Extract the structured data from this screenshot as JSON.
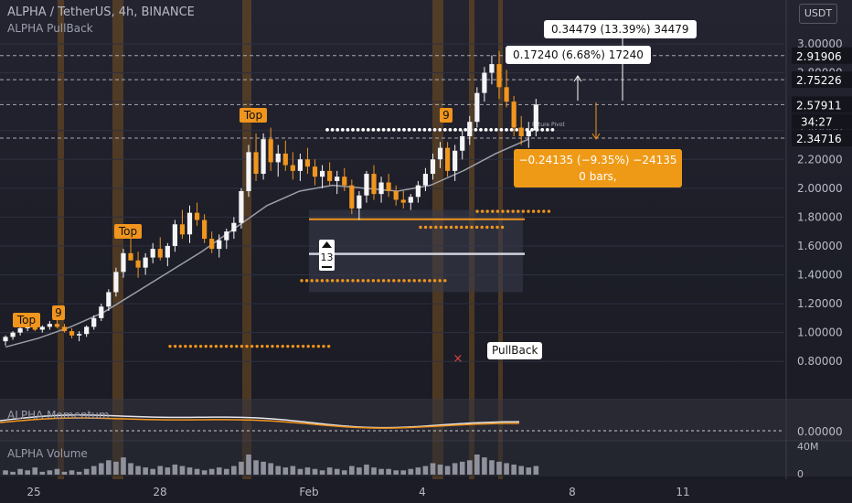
{
  "chart_data": {
    "type": "candlestick",
    "title": "ALPHA / TetherUS, 4h, BINANCE",
    "indicator": "ALPHA PullBack",
    "currency": "USDT",
    "colors": {
      "up": "#f5f5f7",
      "down": "#f0951d",
      "accent": "#f0951d",
      "ma": "#9c9ea8"
    },
    "ylim": [
      0.7,
      3.0
    ],
    "y_ticks": [
      0.8,
      1.0,
      1.2,
      1.4,
      1.6,
      1.8,
      2.0,
      2.2,
      2.4,
      2.6,
      2.8,
      3.0
    ],
    "y_tick_labels": [
      "0.80000",
      "1.00000",
      "1.20000",
      "1.40000",
      "1.60000",
      "1.80000",
      "2.00000",
      "2.20000",
      "2.40000",
      "2.60000",
      "2.80000",
      "3.00000"
    ],
    "x_tick_labels": [
      "25",
      "28",
      "Feb",
      "4",
      "8",
      "11"
    ],
    "price_labels": [
      {
        "value": 2.91906,
        "text": "2.91906"
      },
      {
        "value": 2.75226,
        "text": "2.75226"
      },
      {
        "value": 2.57911,
        "text": "2.57911",
        "current": true
      },
      {
        "value": 2.34716,
        "text": "2.34716"
      }
    ],
    "countdown": "34:27",
    "candles": [
      [
        0.94,
        0.98,
        0.91,
        0.97
      ],
      [
        0.97,
        1.01,
        0.95,
        1.0
      ],
      [
        1.0,
        1.04,
        0.98,
        1.03
      ],
      [
        1.03,
        1.07,
        1.01,
        1.05
      ],
      [
        1.05,
        1.08,
        1.01,
        1.02
      ],
      [
        1.02,
        1.05,
        1.0,
        1.04
      ],
      [
        1.04,
        1.08,
        1.02,
        1.06
      ],
      [
        1.06,
        1.09,
        1.03,
        1.04
      ],
      [
        1.04,
        1.06,
        1.0,
        1.01
      ],
      [
        1.01,
        1.03,
        0.96,
        0.98
      ],
      [
        0.98,
        1.01,
        0.94,
        0.99
      ],
      [
        0.99,
        1.05,
        0.97,
        1.04
      ],
      [
        1.04,
        1.12,
        1.02,
        1.1
      ],
      [
        1.1,
        1.2,
        1.08,
        1.18
      ],
      [
        1.18,
        1.3,
        1.15,
        1.28
      ],
      [
        1.28,
        1.45,
        1.25,
        1.42
      ],
      [
        1.42,
        1.58,
        1.38,
        1.55
      ],
      [
        1.55,
        1.7,
        1.5,
        1.5
      ],
      [
        1.5,
        1.56,
        1.38,
        1.45
      ],
      [
        1.45,
        1.55,
        1.4,
        1.52
      ],
      [
        1.52,
        1.62,
        1.48,
        1.58
      ],
      [
        1.58,
        1.66,
        1.5,
        1.52
      ],
      [
        1.52,
        1.62,
        1.46,
        1.6
      ],
      [
        1.6,
        1.78,
        1.56,
        1.75
      ],
      [
        1.75,
        1.85,
        1.65,
        1.68
      ],
      [
        1.68,
        1.88,
        1.62,
        1.83
      ],
      [
        1.83,
        1.9,
        1.74,
        1.78
      ],
      [
        1.78,
        1.82,
        1.62,
        1.65
      ],
      [
        1.65,
        1.7,
        1.55,
        1.58
      ],
      [
        1.58,
        1.68,
        1.52,
        1.64
      ],
      [
        1.64,
        1.72,
        1.58,
        1.7
      ],
      [
        1.7,
        1.8,
        1.65,
        1.76
      ],
      [
        1.76,
        2.0,
        1.72,
        1.98
      ],
      [
        1.98,
        2.3,
        1.94,
        2.25
      ],
      [
        2.25,
        2.38,
        2.05,
        2.1
      ],
      [
        2.1,
        2.38,
        2.06,
        2.34
      ],
      [
        2.34,
        2.42,
        2.12,
        2.18
      ],
      [
        2.18,
        2.3,
        2.08,
        2.24
      ],
      [
        2.24,
        2.33,
        2.12,
        2.16
      ],
      [
        2.16,
        2.25,
        2.06,
        2.12
      ],
      [
        2.12,
        2.24,
        2.05,
        2.2
      ],
      [
        2.2,
        2.28,
        2.1,
        2.15
      ],
      [
        2.15,
        2.2,
        2.02,
        2.08
      ],
      [
        2.08,
        2.16,
        2.0,
        2.12
      ],
      [
        2.12,
        2.18,
        2.02,
        2.05
      ],
      [
        2.05,
        2.12,
        1.96,
        2.08
      ],
      [
        2.08,
        2.14,
        1.98,
        2.02
      ],
      [
        2.02,
        2.06,
        1.82,
        1.86
      ],
      [
        1.86,
        1.98,
        1.78,
        1.95
      ],
      [
        1.95,
        2.12,
        1.9,
        2.1
      ],
      [
        2.1,
        2.16,
        1.92,
        1.96
      ],
      [
        1.96,
        2.08,
        1.9,
        2.04
      ],
      [
        2.04,
        2.1,
        1.94,
        1.98
      ],
      [
        1.98,
        2.02,
        1.88,
        1.92
      ],
      [
        1.92,
        1.98,
        1.86,
        1.9
      ],
      [
        1.9,
        1.96,
        1.85,
        1.94
      ],
      [
        1.94,
        2.05,
        1.9,
        2.02
      ],
      [
        2.02,
        2.14,
        1.98,
        2.1
      ],
      [
        2.1,
        2.24,
        2.06,
        2.2
      ],
      [
        2.2,
        2.32,
        2.14,
        2.28
      ],
      [
        2.28,
        2.32,
        2.08,
        2.12
      ],
      [
        2.12,
        2.3,
        2.05,
        2.26
      ],
      [
        2.26,
        2.4,
        2.2,
        2.36
      ],
      [
        2.36,
        2.5,
        2.3,
        2.46
      ],
      [
        2.46,
        2.7,
        2.42,
        2.66
      ],
      [
        2.66,
        2.84,
        2.6,
        2.8
      ],
      [
        2.8,
        2.92,
        2.72,
        2.86
      ],
      [
        2.86,
        2.95,
        2.62,
        2.7
      ],
      [
        2.7,
        2.82,
        2.56,
        2.6
      ],
      [
        2.6,
        2.64,
        2.36,
        2.42
      ],
      [
        2.42,
        2.5,
        2.3,
        2.36
      ],
      [
        2.36,
        2.46,
        2.28,
        2.4
      ],
      [
        2.4,
        2.62,
        2.36,
        2.58
      ]
    ],
    "moving_average": [
      0.9,
      0.96,
      1.04,
      1.14,
      1.28,
      1.42,
      1.56,
      1.72,
      1.88,
      1.98,
      2.02,
      2.0,
      1.98,
      2.02,
      2.12,
      2.24,
      2.34
    ],
    "momentum": {
      "title": "ALPHA Momentum",
      "zero_label": "0.00000"
    },
    "volume": {
      "title": "ALPHA Volume",
      "tick_labels": [
        "40M",
        "0"
      ],
      "values": [
        3,
        2,
        4,
        3,
        5,
        2,
        3,
        4,
        2,
        3,
        2,
        4,
        6,
        8,
        10,
        9,
        12,
        8,
        6,
        5,
        4,
        6,
        5,
        7,
        6,
        5,
        4,
        3,
        4,
        5,
        4,
        6,
        9,
        14,
        10,
        9,
        8,
        6,
        5,
        6,
        4,
        5,
        4,
        3,
        5,
        4,
        3,
        6,
        5,
        7,
        5,
        4,
        4,
        3,
        3,
        4,
        5,
        6,
        8,
        7,
        6,
        8,
        9,
        10,
        14,
        12,
        10,
        9,
        8,
        7,
        6,
        5,
        6
      ]
    },
    "labels": {
      "top": "Top",
      "nine": "9",
      "thirteen": "13",
      "pullback": "PullBack",
      "future_pivot": "Future Pivot"
    },
    "measures": [
      {
        "text": "0.17240 (6.68%) 17240"
      },
      {
        "text": "0.34479 (13.39%) 34479"
      },
      {
        "text": "−0.24135 (−9.35%) −24135",
        "bars": "0 bars,"
      }
    ]
  }
}
